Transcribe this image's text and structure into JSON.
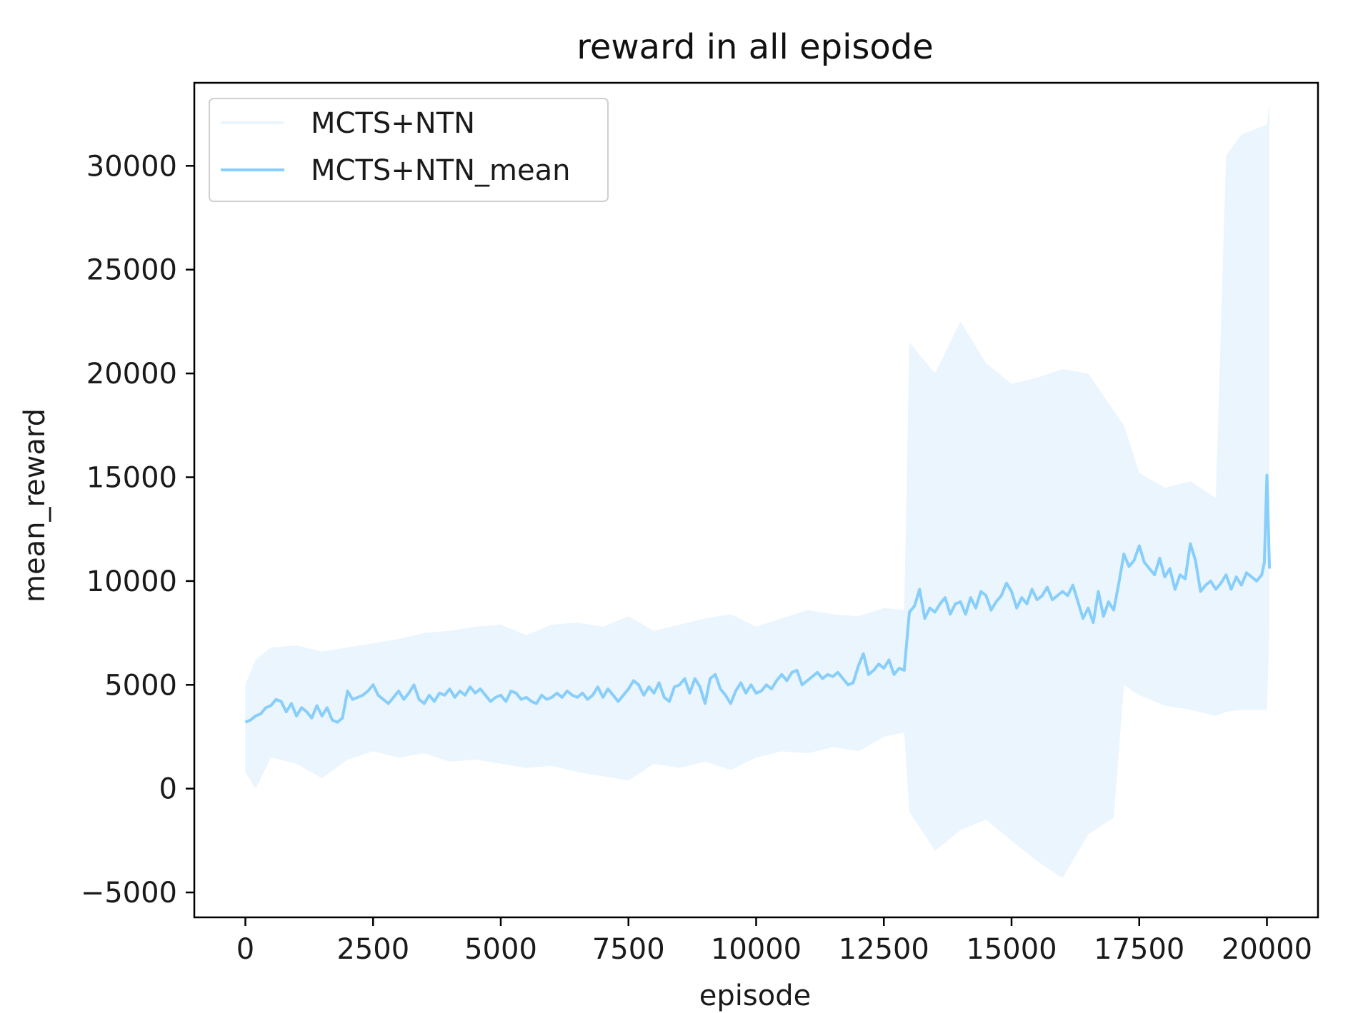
{
  "chart_data": {
    "type": "line",
    "title": "reward in all episode",
    "xlabel": "episode",
    "ylabel": "mean_reward",
    "xlim": [
      -1000,
      21000
    ],
    "ylim": [
      -6200,
      34000
    ],
    "xticks": [
      0,
      2500,
      5000,
      7500,
      10000,
      12500,
      15000,
      17500,
      20000
    ],
    "xtick_labels": [
      "0",
      "2500",
      "5000",
      "7500",
      "10000",
      "12500",
      "15000",
      "17500",
      "20000"
    ],
    "yticks": [
      -5000,
      0,
      5000,
      10000,
      15000,
      20000,
      25000,
      30000
    ],
    "ytick_labels": [
      "−5000",
      "0",
      "5000",
      "10000",
      "15000",
      "20000",
      "25000",
      "30000"
    ],
    "grid": false,
    "legend": "top-left",
    "series": [
      {
        "name": "MCTS+NTN",
        "color": "#eaf5fe",
        "band": [
          {
            "x": 0,
            "low": 800,
            "high": 5000
          },
          {
            "x": 200,
            "low": 0,
            "high": 6200
          },
          {
            "x": 500,
            "low": 1500,
            "high": 6800
          },
          {
            "x": 1000,
            "low": 1200,
            "high": 6900
          },
          {
            "x": 1500,
            "low": 500,
            "high": 6600
          },
          {
            "x": 2000,
            "low": 1400,
            "high": 6800
          },
          {
            "x": 2500,
            "low": 1800,
            "high": 7000
          },
          {
            "x": 3000,
            "low": 1500,
            "high": 7200
          },
          {
            "x": 3500,
            "low": 1700,
            "high": 7500
          },
          {
            "x": 4000,
            "low": 1300,
            "high": 7600
          },
          {
            "x": 4500,
            "low": 1400,
            "high": 7800
          },
          {
            "x": 5000,
            "low": 1200,
            "high": 7900
          },
          {
            "x": 5500,
            "low": 1000,
            "high": 7400
          },
          {
            "x": 6000,
            "low": 1100,
            "high": 7900
          },
          {
            "x": 6500,
            "low": 800,
            "high": 8000
          },
          {
            "x": 7000,
            "low": 600,
            "high": 7800
          },
          {
            "x": 7500,
            "low": 400,
            "high": 8300
          },
          {
            "x": 8000,
            "low": 1200,
            "high": 7600
          },
          {
            "x": 8500,
            "low": 1000,
            "high": 7900
          },
          {
            "x": 9000,
            "low": 1300,
            "high": 8200
          },
          {
            "x": 9500,
            "low": 900,
            "high": 8400
          },
          {
            "x": 10000,
            "low": 1500,
            "high": 7800
          },
          {
            "x": 10500,
            "low": 1800,
            "high": 8200
          },
          {
            "x": 11000,
            "low": 1700,
            "high": 8600
          },
          {
            "x": 11500,
            "low": 2000,
            "high": 8400
          },
          {
            "x": 12000,
            "low": 1800,
            "high": 8300
          },
          {
            "x": 12500,
            "low": 2500,
            "high": 8700
          },
          {
            "x": 12900,
            "low": 2700,
            "high": 8600
          },
          {
            "x": 13000,
            "low": -1100,
            "high": 21500
          },
          {
            "x": 13500,
            "low": -3000,
            "high": 20000
          },
          {
            "x": 14000,
            "low": -2000,
            "high": 22500
          },
          {
            "x": 14500,
            "low": -1500,
            "high": 20500
          },
          {
            "x": 15000,
            "low": -2500,
            "high": 19500
          },
          {
            "x": 15500,
            "low": -3500,
            "high": 19800
          },
          {
            "x": 16000,
            "low": -4300,
            "high": 20200
          },
          {
            "x": 16500,
            "low": -2200,
            "high": 20000
          },
          {
            "x": 17000,
            "low": -1400,
            "high": 18200
          },
          {
            "x": 17200,
            "low": 5000,
            "high": 17500
          },
          {
            "x": 17500,
            "low": 4500,
            "high": 15200
          },
          {
            "x": 18000,
            "low": 4000,
            "high": 14500
          },
          {
            "x": 18500,
            "low": 3800,
            "high": 14800
          },
          {
            "x": 19000,
            "low": 3500,
            "high": 14000
          },
          {
            "x": 19200,
            "low": 3700,
            "high": 30500
          },
          {
            "x": 19500,
            "low": 3800,
            "high": 31500
          },
          {
            "x": 20000,
            "low": 3800,
            "high": 32000
          },
          {
            "x": 20050,
            "low": 8000,
            "high": 33000
          }
        ]
      },
      {
        "name": "MCTS+NTN_mean",
        "color": "#87cefa",
        "points": [
          [
            0,
            3200
          ],
          [
            100,
            3300
          ],
          [
            200,
            3500
          ],
          [
            300,
            3600
          ],
          [
            400,
            3900
          ],
          [
            500,
            4000
          ],
          [
            600,
            4300
          ],
          [
            700,
            4200
          ],
          [
            800,
            3700
          ],
          [
            900,
            4100
          ],
          [
            1000,
            3500
          ],
          [
            1100,
            3900
          ],
          [
            1200,
            3700
          ],
          [
            1300,
            3400
          ],
          [
            1400,
            4000
          ],
          [
            1500,
            3500
          ],
          [
            1600,
            3900
          ],
          [
            1700,
            3300
          ],
          [
            1800,
            3200
          ],
          [
            1900,
            3400
          ],
          [
            2000,
            4700
          ],
          [
            2100,
            4300
          ],
          [
            2200,
            4400
          ],
          [
            2300,
            4500
          ],
          [
            2400,
            4700
          ],
          [
            2500,
            5000
          ],
          [
            2600,
            4500
          ],
          [
            2700,
            4300
          ],
          [
            2800,
            4100
          ],
          [
            2900,
            4400
          ],
          [
            3000,
            4700
          ],
          [
            3100,
            4300
          ],
          [
            3200,
            4600
          ],
          [
            3300,
            5000
          ],
          [
            3400,
            4300
          ],
          [
            3500,
            4100
          ],
          [
            3600,
            4500
          ],
          [
            3700,
            4200
          ],
          [
            3800,
            4600
          ],
          [
            3900,
            4500
          ],
          [
            4000,
            4800
          ],
          [
            4100,
            4400
          ],
          [
            4200,
            4700
          ],
          [
            4300,
            4500
          ],
          [
            4400,
            4900
          ],
          [
            4500,
            4600
          ],
          [
            4600,
            4800
          ],
          [
            4700,
            4500
          ],
          [
            4800,
            4200
          ],
          [
            4900,
            4400
          ],
          [
            5000,
            4500
          ],
          [
            5100,
            4200
          ],
          [
            5200,
            4700
          ],
          [
            5300,
            4600
          ],
          [
            5400,
            4300
          ],
          [
            5500,
            4400
          ],
          [
            5600,
            4200
          ],
          [
            5700,
            4100
          ],
          [
            5800,
            4500
          ],
          [
            5900,
            4300
          ],
          [
            6000,
            4400
          ],
          [
            6100,
            4600
          ],
          [
            6200,
            4400
          ],
          [
            6300,
            4700
          ],
          [
            6400,
            4500
          ],
          [
            6500,
            4400
          ],
          [
            6600,
            4600
          ],
          [
            6700,
            4300
          ],
          [
            6800,
            4500
          ],
          [
            6900,
            4900
          ],
          [
            7000,
            4400
          ],
          [
            7100,
            4800
          ],
          [
            7200,
            4500
          ],
          [
            7300,
            4200
          ],
          [
            7400,
            4500
          ],
          [
            7500,
            4800
          ],
          [
            7600,
            5200
          ],
          [
            7700,
            5000
          ],
          [
            7800,
            4500
          ],
          [
            7900,
            4900
          ],
          [
            8000,
            4600
          ],
          [
            8100,
            5100
          ],
          [
            8200,
            4400
          ],
          [
            8300,
            4200
          ],
          [
            8400,
            4900
          ],
          [
            8500,
            5000
          ],
          [
            8600,
            5300
          ],
          [
            8700,
            4600
          ],
          [
            8800,
            5300
          ],
          [
            8900,
            4900
          ],
          [
            9000,
            4100
          ],
          [
            9100,
            5300
          ],
          [
            9200,
            5500
          ],
          [
            9300,
            4800
          ],
          [
            9400,
            4500
          ],
          [
            9500,
            4100
          ],
          [
            9600,
            4700
          ],
          [
            9700,
            5100
          ],
          [
            9800,
            4600
          ],
          [
            9900,
            5000
          ],
          [
            10000,
            4600
          ],
          [
            10100,
            4700
          ],
          [
            10200,
            5000
          ],
          [
            10300,
            4800
          ],
          [
            10400,
            5200
          ],
          [
            10500,
            5500
          ],
          [
            10600,
            5200
          ],
          [
            10700,
            5600
          ],
          [
            10800,
            5700
          ],
          [
            10900,
            5000
          ],
          [
            11000,
            5200
          ],
          [
            11100,
            5400
          ],
          [
            11200,
            5600
          ],
          [
            11300,
            5300
          ],
          [
            11400,
            5500
          ],
          [
            11500,
            5400
          ],
          [
            11600,
            5600
          ],
          [
            11700,
            5300
          ],
          [
            11800,
            5000
          ],
          [
            11900,
            5100
          ],
          [
            12000,
            5900
          ],
          [
            12100,
            6500
          ],
          [
            12200,
            5500
          ],
          [
            12300,
            5700
          ],
          [
            12400,
            6000
          ],
          [
            12500,
            5800
          ],
          [
            12600,
            6200
          ],
          [
            12700,
            5500
          ],
          [
            12800,
            5800
          ],
          [
            12900,
            5700
          ],
          [
            13000,
            8500
          ],
          [
            13100,
            8800
          ],
          [
            13200,
            9600
          ],
          [
            13300,
            8200
          ],
          [
            13400,
            8700
          ],
          [
            13500,
            8500
          ],
          [
            13600,
            8900
          ],
          [
            13700,
            9200
          ],
          [
            13800,
            8400
          ],
          [
            13900,
            8900
          ],
          [
            14000,
            9000
          ],
          [
            14100,
            8400
          ],
          [
            14200,
            9200
          ],
          [
            14300,
            8700
          ],
          [
            14400,
            9500
          ],
          [
            14500,
            9300
          ],
          [
            14600,
            8600
          ],
          [
            14700,
            9000
          ],
          [
            14800,
            9300
          ],
          [
            14900,
            9900
          ],
          [
            15000,
            9500
          ],
          [
            15100,
            8700
          ],
          [
            15200,
            9200
          ],
          [
            15300,
            8900
          ],
          [
            15400,
            9600
          ],
          [
            15500,
            9100
          ],
          [
            15600,
            9300
          ],
          [
            15700,
            9700
          ],
          [
            15800,
            9100
          ],
          [
            15900,
            9300
          ],
          [
            16000,
            9500
          ],
          [
            16100,
            9300
          ],
          [
            16200,
            9800
          ],
          [
            16300,
            9000
          ],
          [
            16400,
            8200
          ],
          [
            16500,
            8700
          ],
          [
            16600,
            8000
          ],
          [
            16700,
            9500
          ],
          [
            16800,
            8300
          ],
          [
            16900,
            9000
          ],
          [
            17000,
            8600
          ],
          [
            17100,
            9900
          ],
          [
            17200,
            11300
          ],
          [
            17300,
            10700
          ],
          [
            17400,
            11000
          ],
          [
            17500,
            11700
          ],
          [
            17600,
            10900
          ],
          [
            17700,
            10600
          ],
          [
            17800,
            10300
          ],
          [
            17900,
            11100
          ],
          [
            18000,
            10200
          ],
          [
            18100,
            10600
          ],
          [
            18200,
            9600
          ],
          [
            18300,
            10300
          ],
          [
            18400,
            10100
          ],
          [
            18500,
            11800
          ],
          [
            18600,
            11000
          ],
          [
            18700,
            9500
          ],
          [
            18800,
            9800
          ],
          [
            18900,
            10000
          ],
          [
            19000,
            9600
          ],
          [
            19100,
            9900
          ],
          [
            19200,
            10300
          ],
          [
            19300,
            9600
          ],
          [
            19400,
            10200
          ],
          [
            19500,
            9800
          ],
          [
            19600,
            10400
          ],
          [
            19700,
            10200
          ],
          [
            19800,
            10000
          ],
          [
            19900,
            10300
          ],
          [
            19950,
            10900
          ],
          [
            20000,
            15100
          ],
          [
            20050,
            10600
          ]
        ]
      }
    ]
  }
}
